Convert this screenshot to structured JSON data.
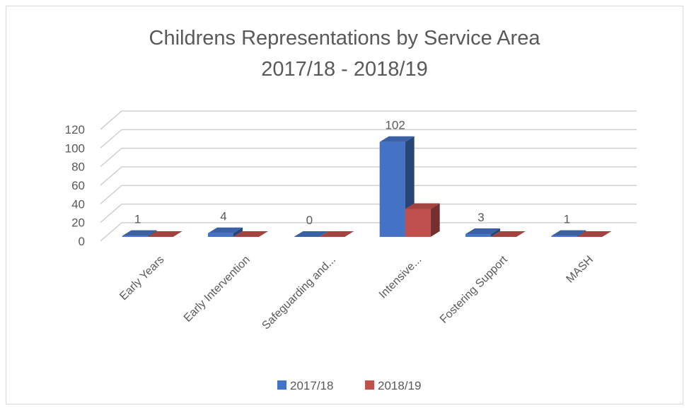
{
  "chart_data": {
    "type": "bar",
    "title_lines": [
      "Childrens Representations by Service Area",
      "2017/18 - 2018/19"
    ],
    "categories": [
      "Early Years",
      "Early Intervention",
      "Safeguarding and...",
      "Intensive...",
      "Fostering Support",
      "MASH"
    ],
    "series": [
      {
        "name": "2017/18",
        "values": [
          1,
          4,
          0,
          102,
          3,
          1
        ],
        "color": "#4472c4",
        "show_labels": true
      },
      {
        "name": "2018/19",
        "values": [
          0,
          0,
          0,
          30,
          0,
          0
        ],
        "color": "#c0504d",
        "show_labels": false
      }
    ],
    "y_ticks": [
      "0",
      "20",
      "40",
      "60",
      "80",
      "100",
      "120"
    ],
    "ylim": [
      0,
      120
    ],
    "grid": true,
    "three_d": true,
    "legend_position": "bottom"
  }
}
